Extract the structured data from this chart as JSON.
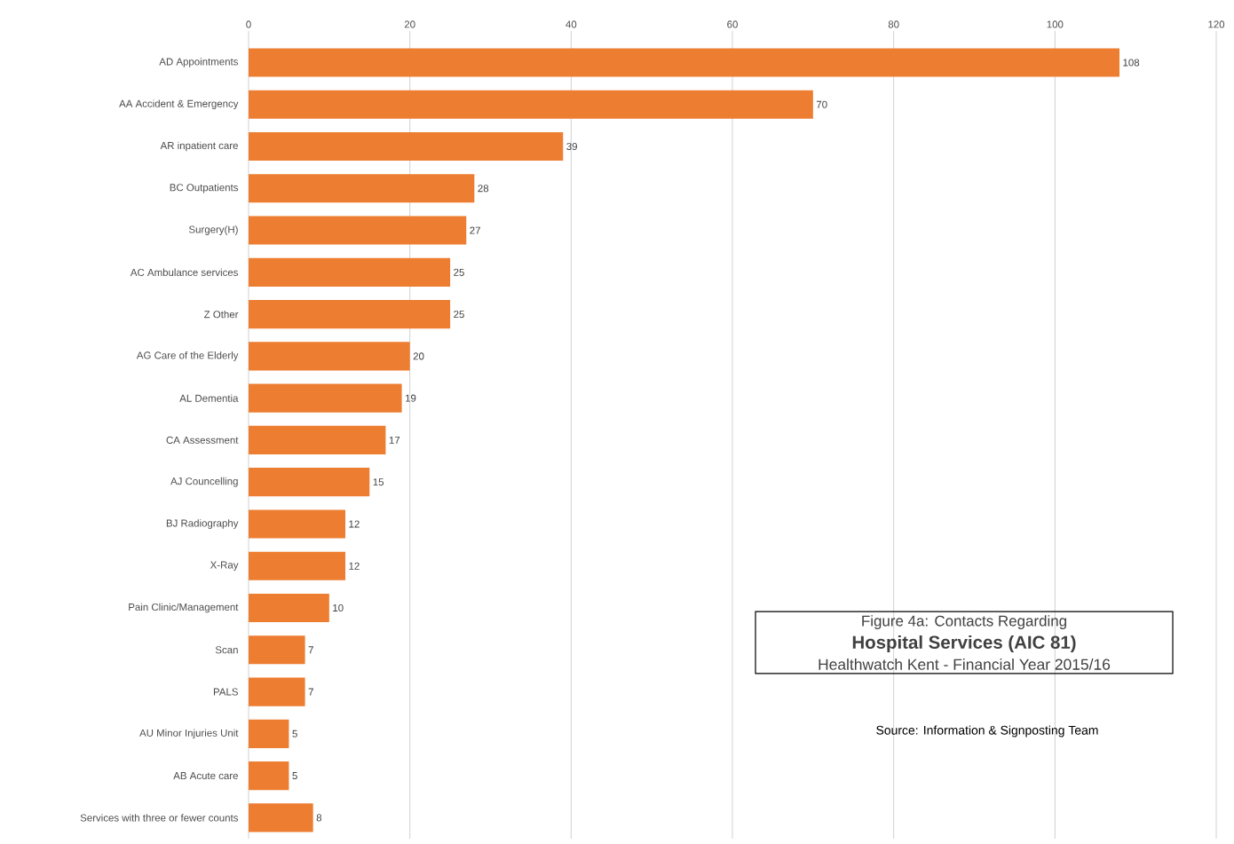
{
  "chart_data": {
    "type": "bar",
    "orientation": "horizontal",
    "title": "Figure 4a: Contacts Regarding",
    "subtitle": "Hospital Services (AIC 81)",
    "annotations": [
      "Healthwatch Kent - Financial Year 2015/16",
      "Source: Information & Signposting Team"
    ],
    "categories": [
      "AD Appointments",
      "AA Accident & Emergency",
      "AR inpatient care",
      "BC Outpatients",
      "Surgery(H)",
      "AC Ambulance services",
      "Z Other",
      "AG Care of the Elderly",
      "AL Dementia",
      "CA Assessment",
      "AJ Councelling",
      "BJ Radiography",
      "X-Ray",
      "Pain Clinic/Management",
      "Scan",
      "PALS",
      "AU Minor Injuries Unit",
      "AB Acute care",
      "Services with three or fewer counts"
    ],
    "values": [
      108,
      70,
      39,
      28,
      27,
      25,
      25,
      20,
      19,
      17,
      15,
      12,
      12,
      10,
      7,
      7,
      5,
      5,
      8
    ],
    "color": "#ed7d31",
    "xlim": [
      0,
      120
    ],
    "xticks": [
      0,
      20,
      40,
      60,
      80,
      100,
      120
    ],
    "grid": "x",
    "data_labels": true
  }
}
